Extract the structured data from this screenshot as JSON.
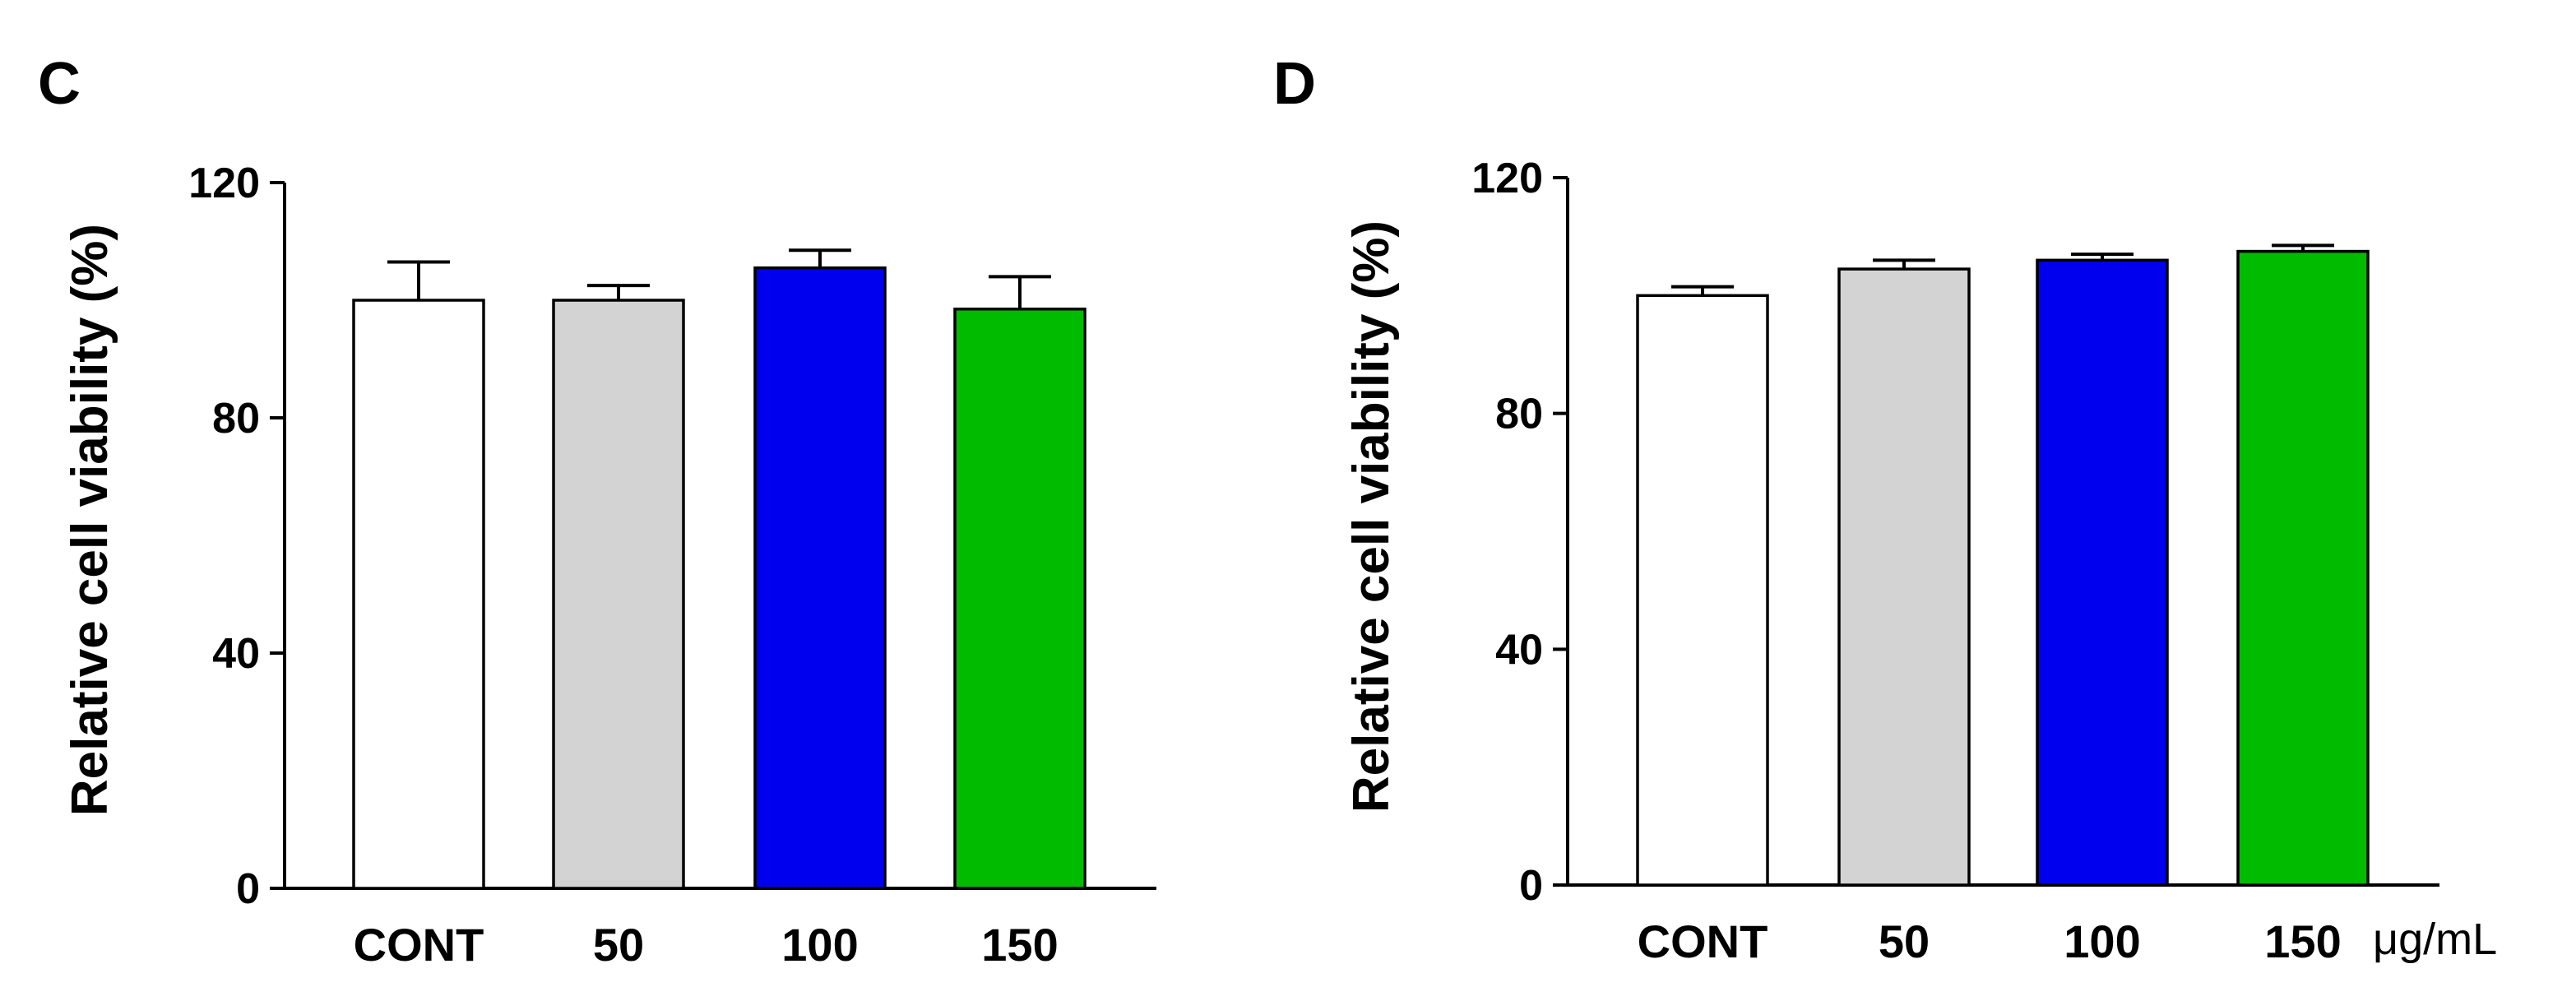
{
  "chart_data": [
    {
      "panel": "C",
      "type": "bar",
      "title": "",
      "xlabel": "",
      "ylabel": "Relative cell viability (%)",
      "ylim": [
        0,
        120
      ],
      "yticks": [
        0,
        40,
        80,
        120
      ],
      "categories": [
        "CONT",
        "50",
        "100",
        "150"
      ],
      "values": [
        100,
        100,
        105.5,
        98.5
      ],
      "errors": [
        6.5,
        2.5,
        3,
        5.5
      ],
      "colors": [
        "#ffffff",
        "#d3d3d3",
        "#0000ee",
        "#00bb00"
      ],
      "unit_label": ""
    },
    {
      "panel": "D",
      "type": "bar",
      "title": "",
      "xlabel": "",
      "ylabel": "Relative cell viability (%)",
      "ylim": [
        0,
        120
      ],
      "yticks": [
        0,
        40,
        80,
        120
      ],
      "categories": [
        "CONT",
        "50",
        "100",
        "150"
      ],
      "values": [
        100,
        104.5,
        106,
        107.5
      ],
      "errors": [
        1.5,
        1.5,
        1,
        1
      ],
      "colors": [
        "#ffffff",
        "#d3d3d3",
        "#0000ee",
        "#00bb00"
      ],
      "unit_label": "μg/mL"
    }
  ]
}
